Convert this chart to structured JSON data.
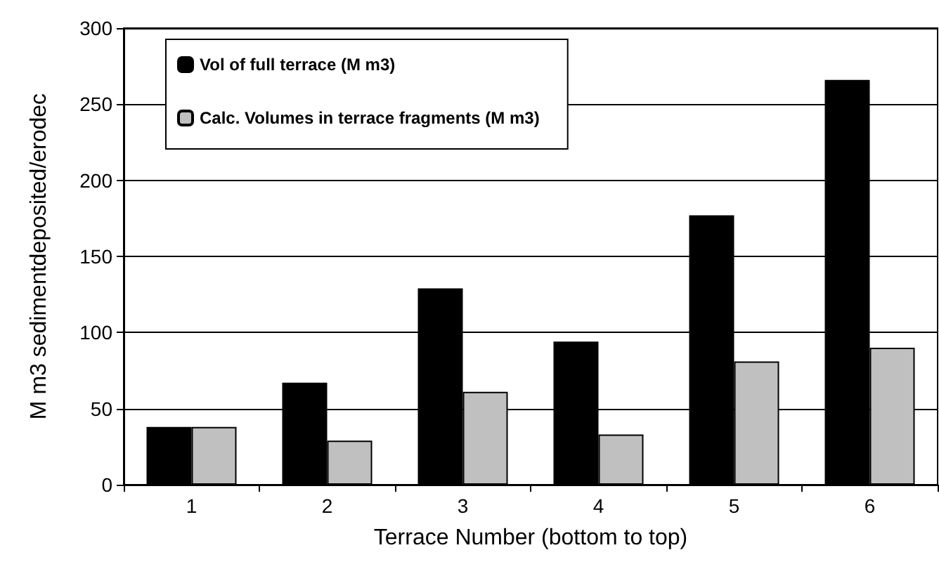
{
  "chart_data": {
    "type": "bar",
    "xlabel": "Terrace Number (bottom to top)",
    "ylabel": "M m3 sedimentdeposited/erodec",
    "categories": [
      "1",
      "2",
      "3",
      "4",
      "5",
      "6"
    ],
    "series": [
      {
        "name": "Vol of full terrace (M m3)",
        "color": "#000000",
        "values": [
          38,
          67,
          129,
          94,
          177,
          266
        ]
      },
      {
        "name": "Calc. Volumes in terrace fragments (M m3)",
        "color": "#c0c0c0",
        "values": [
          38,
          29,
          61,
          33,
          81,
          90
        ]
      }
    ],
    "ylim": [
      0,
      300
    ],
    "yticks": [
      0,
      50,
      100,
      150,
      200,
      250,
      300
    ],
    "grid": "y",
    "legend": "top left"
  }
}
